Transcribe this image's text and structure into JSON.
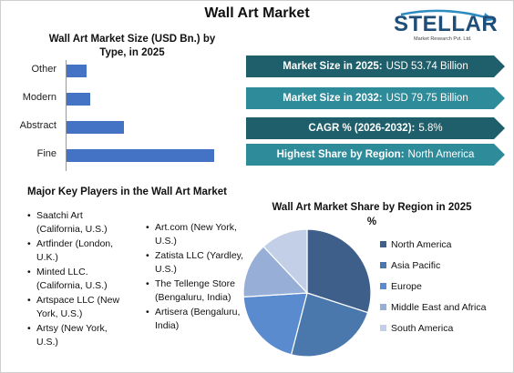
{
  "title": "Wall Art Market",
  "logo": {
    "name": "STELLAR",
    "tagline": "Market Research Pvt. Ltd."
  },
  "bar_chart_title": [
    "Wall Art Market Size (USD Bn.) by",
    "Type, in 2025"
  ],
  "banners": [
    {
      "label": "Market Size in 2025:",
      "value": "USD 53.74 Billion",
      "color": "#1f5f6b"
    },
    {
      "label": "Market Size in 2032:",
      "value": "USD 79.75 Billion",
      "color": "#2e8b9a"
    },
    {
      "label": "CAGR % (2026-2032):",
      "value": "5.8%",
      "color": "#1f5f6b"
    },
    {
      "label": "Highest Share by Region:",
      "value": "North America",
      "color": "#2e8b9a"
    }
  ],
  "key_players_title": "Major Key Players in the Wall Art Market",
  "key_players_col1": [
    "Saatchi Art (California, U.S.)",
    "Artfinder (London, U.K.)",
    "Minted LLC. (California, U.S.)",
    "Artspace LLC (New York, U.S.)",
    "Artsy (New York, U.S.)"
  ],
  "key_players_col2": [
    "Art.com (New York, U.S.)",
    "Zatista LLC (Yardley, U.S.)",
    "The Tellenge Store (Bengaluru, India)",
    "Artisera (Bengaluru, India)"
  ],
  "pie_chart_title": [
    "Wall Art Market Share by Region in 2025",
    "%"
  ],
  "colors": {
    "bar": "#4472c4"
  },
  "chart_data": [
    {
      "type": "bar",
      "orientation": "horizontal",
      "categories": [
        "Other",
        "Modern",
        "Abstract",
        "Fine"
      ],
      "values": [
        3.5,
        4.2,
        10.1,
        26.0
      ],
      "xlabel": "",
      "ylabel": "",
      "grid": false
    },
    {
      "type": "pie",
      "categories": [
        "North America",
        "Asia Pacific",
        "Europe",
        "Middle East and Africa",
        "South America"
      ],
      "values": [
        30,
        24,
        20,
        14,
        12
      ],
      "colors": [
        "#3e5f8a",
        "#4a78ad",
        "#5b8bcf",
        "#97aed6",
        "#c3cfe6"
      ],
      "legend": "right"
    }
  ]
}
